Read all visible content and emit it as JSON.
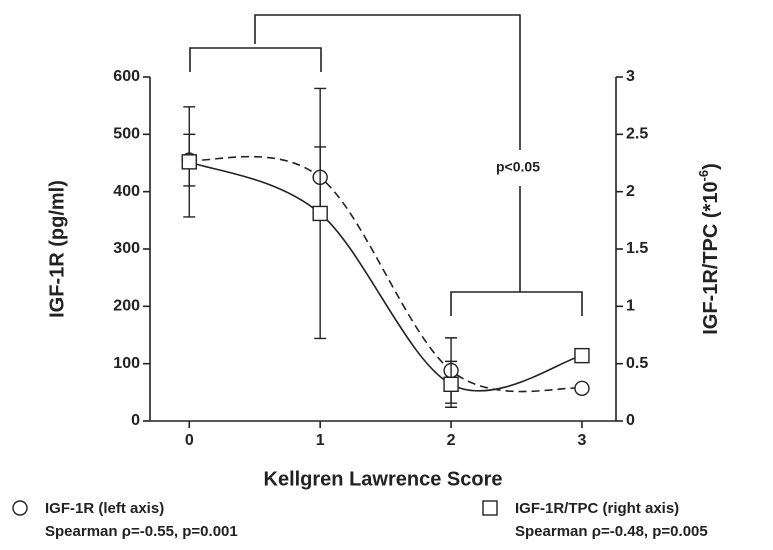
{
  "chart_data": {
    "type": "line",
    "x": [
      0,
      1,
      2,
      3
    ],
    "xlim": [
      -0.3,
      3.26
    ],
    "xticks": [
      0,
      1,
      2,
      3
    ],
    "ylim": [
      0,
      600
    ],
    "yticks": [
      0,
      100,
      200,
      300,
      400,
      500,
      600
    ],
    "y2lim": [
      0,
      3
    ],
    "y2ticks": [
      0,
      0.5,
      1,
      1.5,
      2,
      2.5,
      3
    ],
    "xlabel": "Kellgren Lawrence Score",
    "ylabel": "IGF-1R (pg/ml)",
    "y2label": {
      "text": "IGF-1R/TPC (*10",
      "sup": "-6",
      "end": ")"
    },
    "annotation": "p<0.05",
    "series": [
      {
        "name": "IGF-1R (left axis)",
        "stat": "Spearman ρ=-0.55, p=0.001",
        "marker": "circle",
        "dash": true,
        "color": "#222222",
        "values": [
          455,
          425,
          88,
          57
        ],
        "errors": [
          45,
          53,
          57,
          null
        ]
      },
      {
        "name": "IGF-1R/TPC (right axis)",
        "stat": "Spearman ρ=-0.48, p=0.005",
        "marker": "square",
        "dash": false,
        "color": "#222222",
        "axis": "y2",
        "values": [
          2.26,
          1.81,
          0.32,
          0.57
        ],
        "errors": [
          0.48,
          1.09,
          0.2,
          null
        ]
      }
    ]
  }
}
